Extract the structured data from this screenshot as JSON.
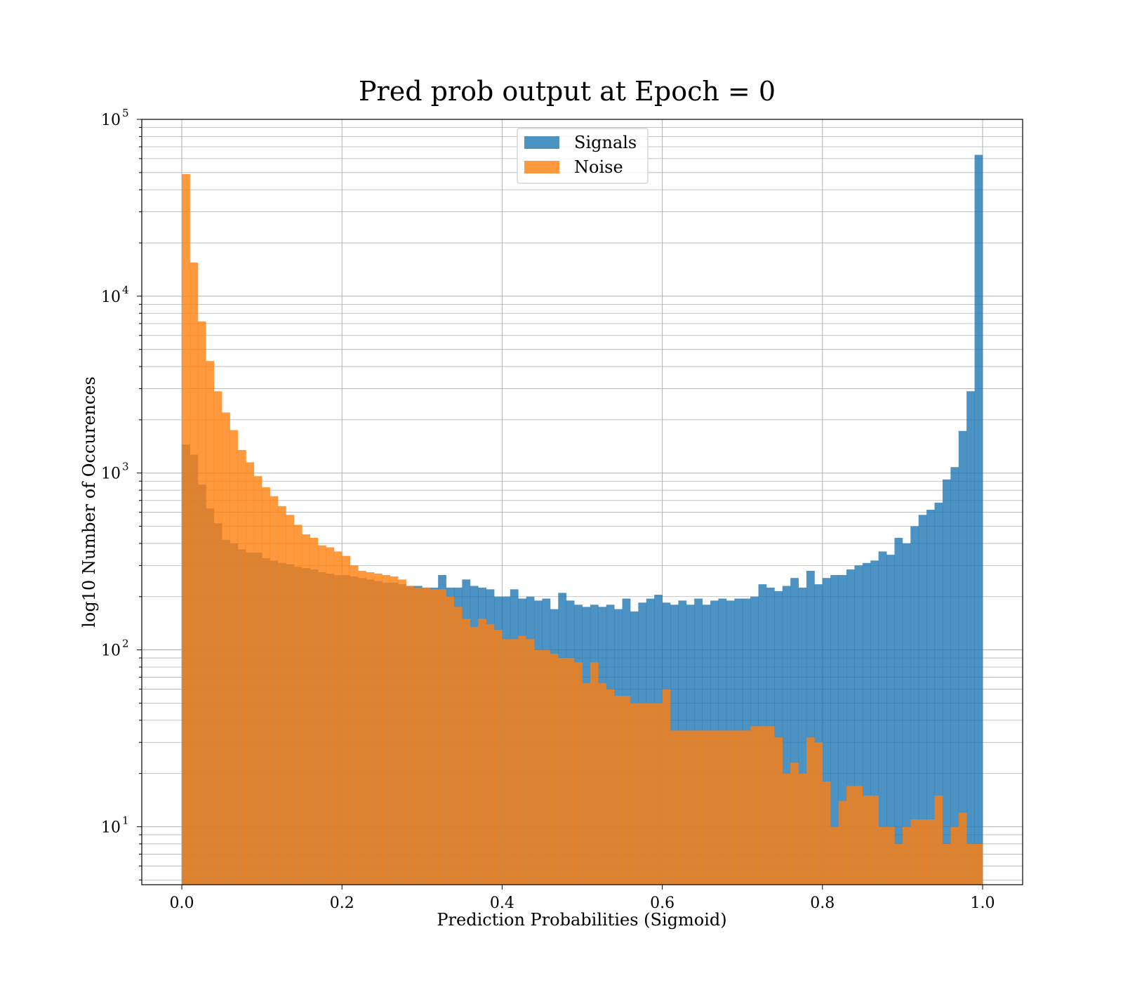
{
  "chart_data": {
    "type": "bar",
    "subtype": "overlapping-histogram",
    "title": "Pred prob output at Epoch = 0",
    "xlabel": "Prediction Probabilities (Sigmoid)",
    "ylabel": "log10 Number of Occurences",
    "xlim": [
      -0.05,
      1.05
    ],
    "ylim": [
      4.7,
      100000
    ],
    "yscale": "log",
    "grid": true,
    "legend": "upper center",
    "bins": 100,
    "bin_range": [
      0,
      1
    ],
    "x_ticks": [
      "0.0",
      "0.2",
      "0.4",
      "0.6",
      "0.8",
      "1.0"
    ],
    "x_tick_values": [
      0,
      0.2,
      0.4,
      0.6,
      0.8,
      1.0
    ],
    "y_ticks": [
      {
        "base": "10",
        "exp": "1",
        "value": 10
      },
      {
        "base": "10",
        "exp": "2",
        "value": 100
      },
      {
        "base": "10",
        "exp": "3",
        "value": 1000
      },
      {
        "base": "10",
        "exp": "4",
        "value": 10000
      },
      {
        "base": "10",
        "exp": "5",
        "value": 100000
      }
    ],
    "series": [
      {
        "name": "Signals",
        "color": "#1f77b4",
        "alpha": 0.8,
        "values": [
          1450,
          1270,
          860,
          630,
          520,
          420,
          400,
          370,
          355,
          355,
          330,
          320,
          310,
          305,
          295,
          290,
          285,
          275,
          270,
          265,
          265,
          260,
          255,
          250,
          245,
          240,
          240,
          235,
          230,
          230,
          225,
          225,
          265,
          225,
          225,
          250,
          230,
          225,
          220,
          200,
          200,
          220,
          195,
          200,
          190,
          195,
          170,
          210,
          190,
          180,
          175,
          180,
          175,
          180,
          170,
          195,
          165,
          185,
          195,
          205,
          185,
          180,
          190,
          180,
          195,
          180,
          190,
          195,
          190,
          195,
          195,
          200,
          235,
          225,
          215,
          230,
          255,
          225,
          280,
          235,
          255,
          265,
          265,
          285,
          300,
          310,
          320,
          360,
          345,
          430,
          400,
          500,
          580,
          620,
          680,
          920,
          1080,
          1730,
          2900,
          63000
        ]
      },
      {
        "name": "Noise",
        "color": "#ff7f0e",
        "alpha": 0.8,
        "values": [
          49000,
          15500,
          7200,
          4300,
          2900,
          2200,
          1750,
          1350,
          1150,
          960,
          830,
          740,
          650,
          580,
          510,
          450,
          430,
          390,
          380,
          360,
          340,
          300,
          280,
          275,
          270,
          265,
          260,
          250,
          230,
          225,
          225,
          220,
          220,
          200,
          175,
          150,
          135,
          150,
          140,
          130,
          115,
          115,
          120,
          115,
          100,
          100,
          95,
          90,
          90,
          85,
          65,
          85,
          65,
          60,
          55,
          55,
          50,
          50,
          50,
          50,
          60,
          35,
          35,
          35,
          35,
          35,
          35,
          35,
          35,
          35,
          35,
          37,
          37,
          37,
          32,
          20,
          23,
          20,
          32,
          30,
          18,
          10,
          14,
          17,
          17,
          15,
          15,
          10,
          10,
          8,
          10,
          11,
          11,
          11,
          15,
          8,
          10,
          12,
          8,
          8
        ]
      }
    ]
  }
}
